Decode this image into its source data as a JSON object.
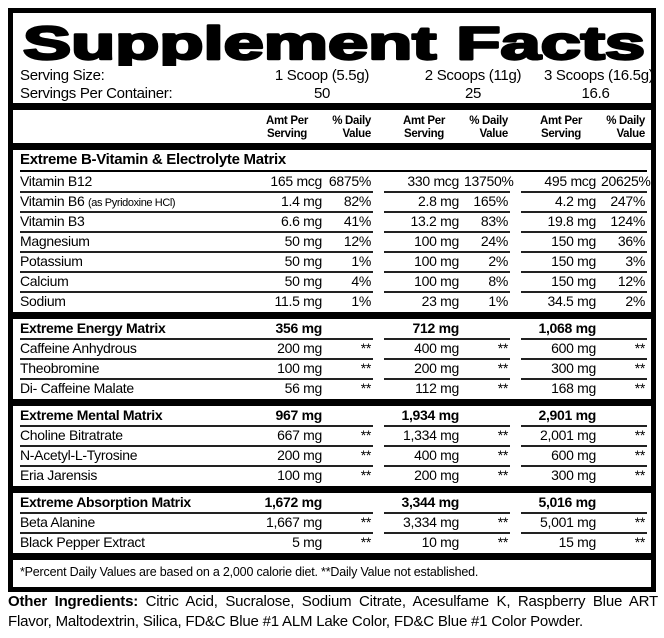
{
  "title": "Supplement Facts",
  "serving": {
    "size_label": "Serving Size:",
    "sizes": [
      "1 Scoop (5.5g)",
      "2 Scoops (11g)",
      "3 Scoops (16.5g)"
    ],
    "per_container_label": "Servings Per Container:",
    "per_container": [
      "50",
      "25",
      "16.6"
    ]
  },
  "columns": {
    "amt1": "Amt Per",
    "amt2": "Serving",
    "dv1": "% Daily",
    "dv2": "Value"
  },
  "sections": [
    {
      "header": "Extreme B-Vitamin & Electrolyte Matrix",
      "header_values": null,
      "rows": [
        {
          "name": "Vitamin B12",
          "note": "",
          "v": [
            "165 mcg",
            "6875%",
            "330 mcg",
            "13750%",
            "495 mcg",
            "20625%"
          ]
        },
        {
          "name": "Vitamin B6",
          "note": "(as Pyridoxine HCl)",
          "v": [
            "1.4 mg",
            "82%",
            "2.8 mg",
            "165%",
            "4.2 mg",
            "247%"
          ]
        },
        {
          "name": "Vitamin B3",
          "note": "",
          "v": [
            "6.6 mg",
            "41%",
            "13.2 mg",
            "83%",
            "19.8 mg",
            "124%"
          ]
        },
        {
          "name": "Magnesium",
          "note": "",
          "v": [
            "50 mg",
            "12%",
            "100 mg",
            "24%",
            "150 mg",
            "36%"
          ]
        },
        {
          "name": "Potassium",
          "note": "",
          "v": [
            "50 mg",
            "1%",
            "100 mg",
            "2%",
            "150 mg",
            "3%"
          ]
        },
        {
          "name": "Calcium",
          "note": "",
          "v": [
            "50 mg",
            "4%",
            "100 mg",
            "8%",
            "150 mg",
            "12%"
          ]
        },
        {
          "name": "Sodium",
          "note": "",
          "v": [
            "11.5 mg",
            "1%",
            "23 mg",
            "1%",
            "34.5 mg",
            "2%"
          ]
        }
      ]
    },
    {
      "header": "Extreme Energy Matrix",
      "header_values": [
        "356 mg",
        "712 mg",
        "1,068 mg"
      ],
      "rows": [
        {
          "name": "Caffeine Anhydrous",
          "note": "",
          "v": [
            "200 mg",
            "**",
            "400 mg",
            "**",
            "600 mg",
            "**"
          ]
        },
        {
          "name": "Theobromine",
          "note": "",
          "v": [
            "100 mg",
            "**",
            "200 mg",
            "**",
            "300 mg",
            "**"
          ]
        },
        {
          "name": "Di- Caffeine Malate",
          "note": "",
          "v": [
            "56 mg",
            "**",
            "112 mg",
            "**",
            "168 mg",
            "**"
          ]
        }
      ]
    },
    {
      "header": "Extreme Mental Matrix",
      "header_values": [
        "967 mg",
        "1,934 mg",
        "2,901 mg"
      ],
      "rows": [
        {
          "name": "Choline Bitratrate",
          "note": "",
          "v": [
            "667 mg",
            "**",
            "1,334 mg",
            "**",
            "2,001 mg",
            "**"
          ]
        },
        {
          "name": "N-Acetyl-L-Tyrosine",
          "note": "",
          "v": [
            "200 mg",
            "**",
            "400 mg",
            "**",
            "600 mg",
            "**"
          ]
        },
        {
          "name": "Eria Jarensis",
          "note": "",
          "v": [
            "100 mg",
            "**",
            "200 mg",
            "**",
            "300 mg",
            "**"
          ]
        }
      ]
    },
    {
      "header": "Extreme Absorption Matrix",
      "header_values": [
        "1,672 mg",
        "3,344 mg",
        "5,016 mg"
      ],
      "rows": [
        {
          "name": "Beta Alanine",
          "note": "",
          "v": [
            "1,667 mg",
            "**",
            "3,334 mg",
            "**",
            "5,001 mg",
            "**"
          ]
        },
        {
          "name": "Black Pepper Extract",
          "note": "",
          "v": [
            "5 mg",
            "**",
            "10 mg",
            "**",
            "15 mg",
            "**"
          ]
        }
      ]
    }
  ],
  "footnote": "*Percent Daily Values are based on a 2,000 calorie diet. **Daily Value not established.",
  "other_ingredients": {
    "label": "Other Ingredients:",
    "text": "Citric Acid, Sucralose, Sodium Citrate, Acesulfame K, Raspberry Blue ART Flavor, Maltodextrin, Silica, FD&C Blue #1 ALM Lake Color, FD&C Blue #1 Color Powder."
  }
}
